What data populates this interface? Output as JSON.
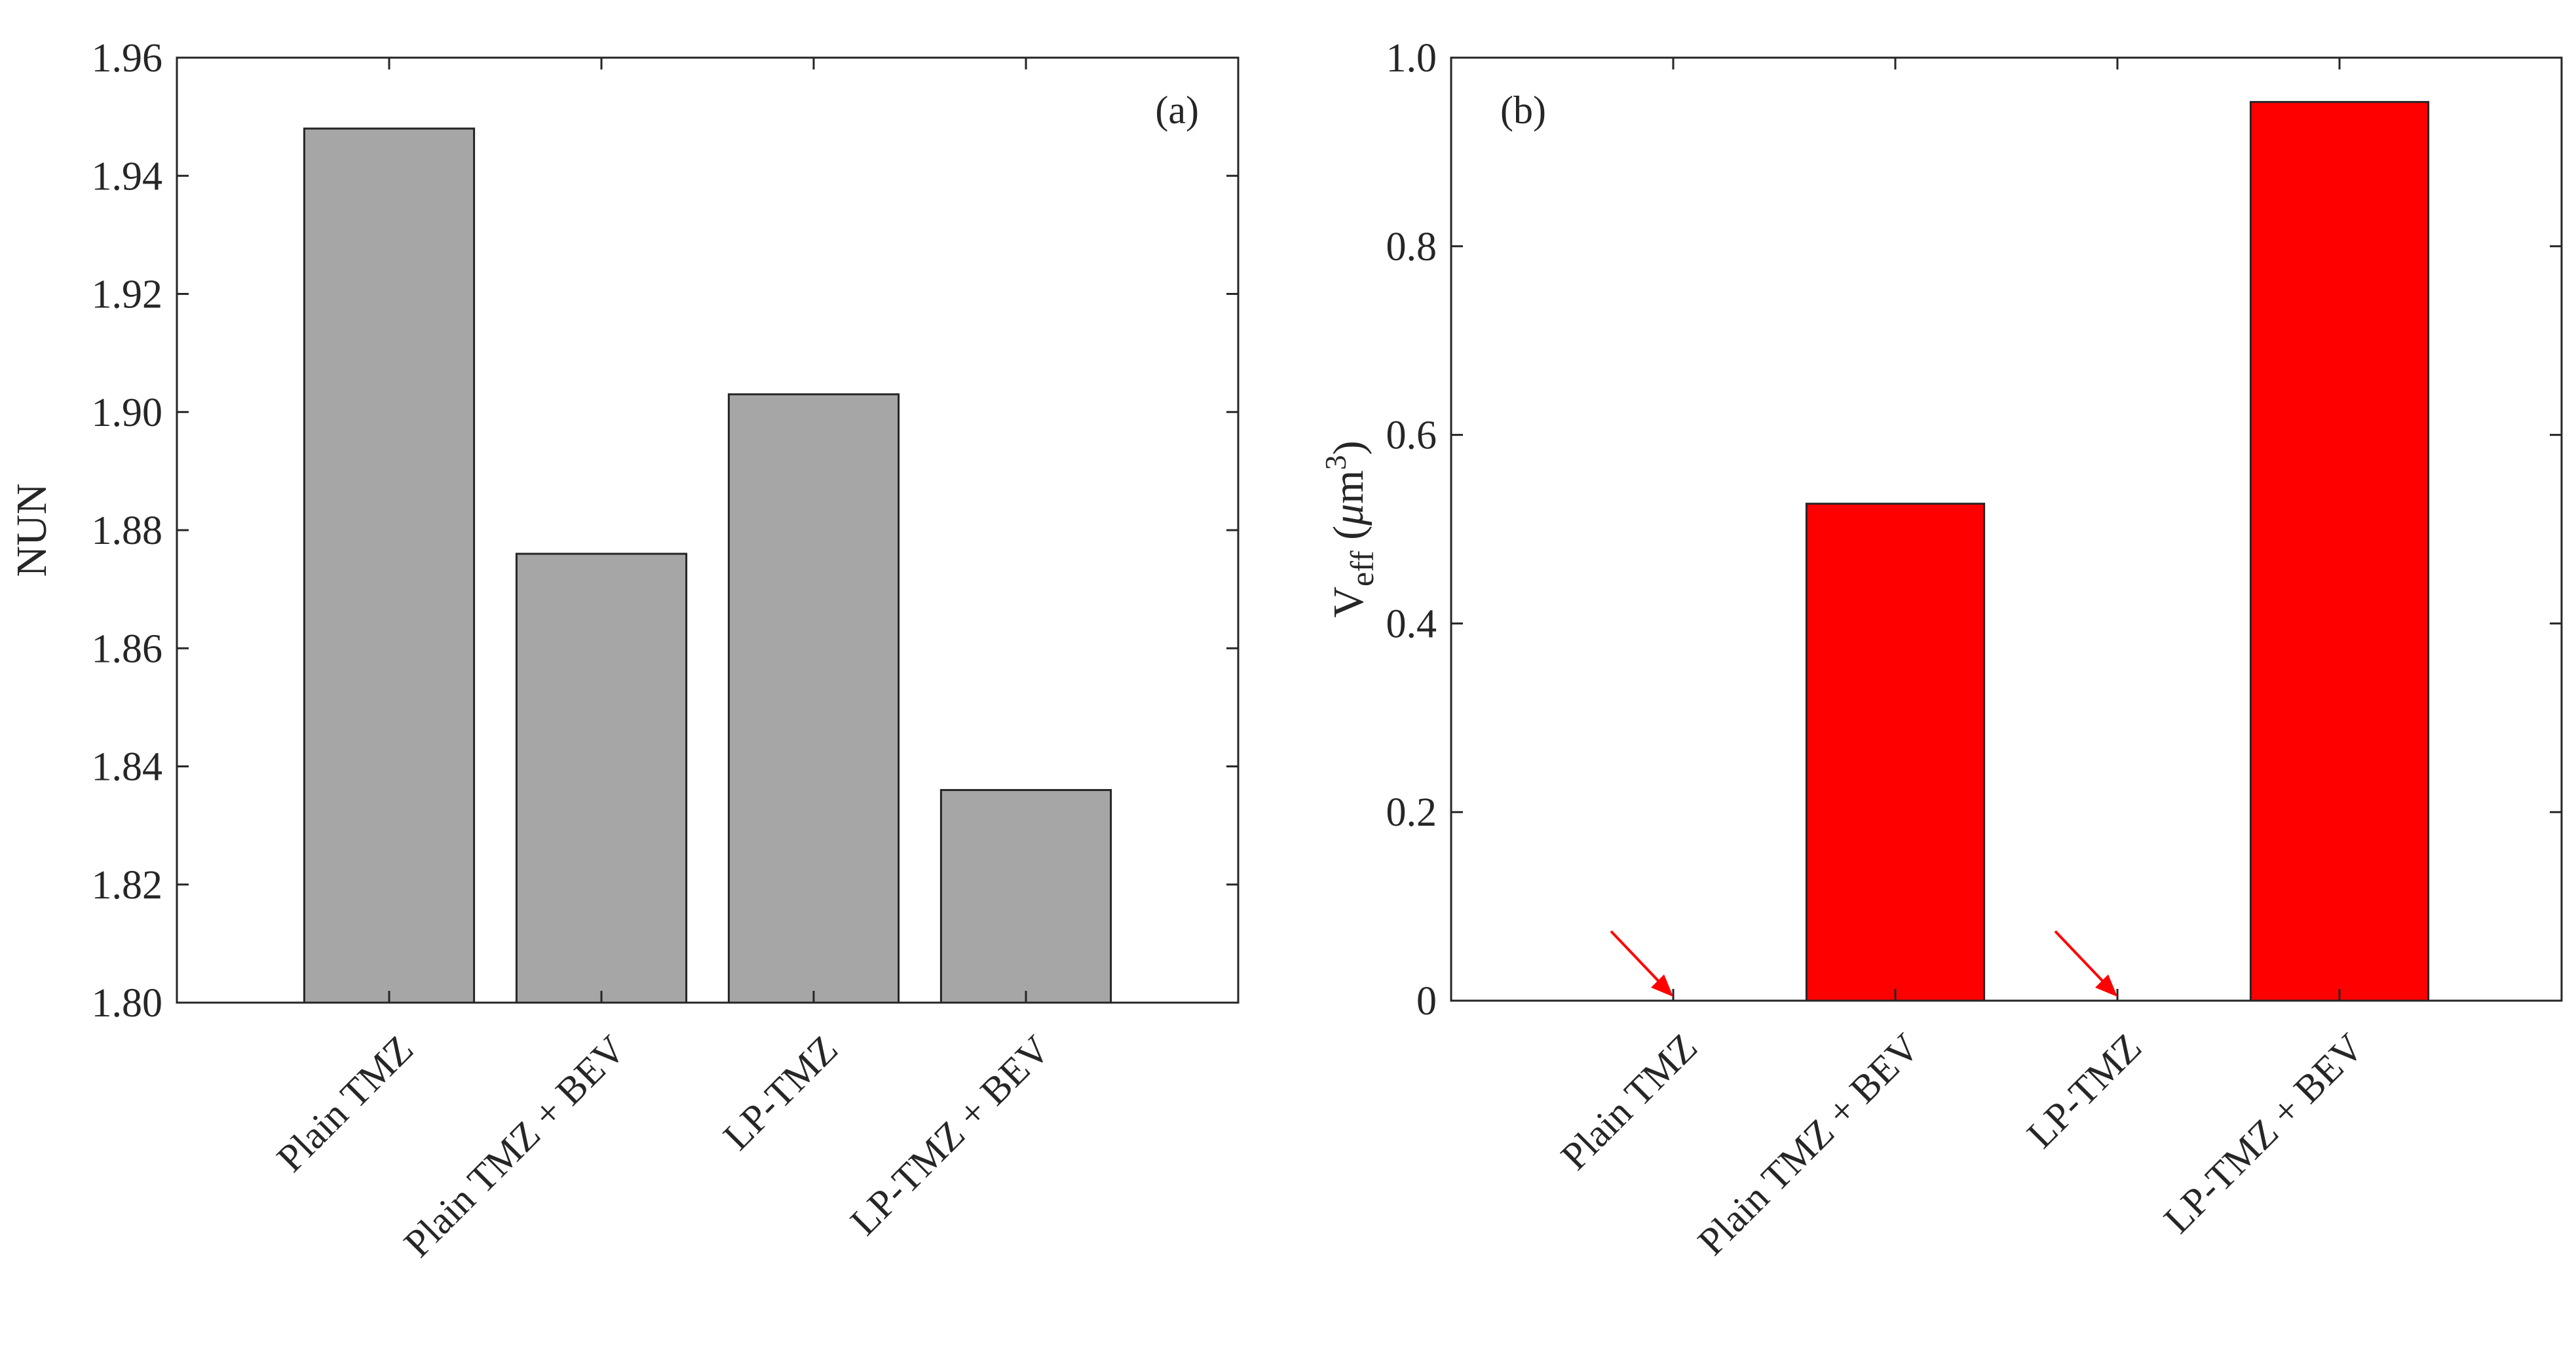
{
  "chart_data": [
    {
      "type": "bar",
      "panel_label": "(a)",
      "categories": [
        "Plain TMZ",
        "Plain TMZ + BEV",
        "LP-TMZ",
        "LP-TMZ + BEV"
      ],
      "values": [
        1.948,
        1.876,
        1.903,
        1.836
      ],
      "ylabel": "NUN",
      "xlabel": "",
      "ylim": [
        1.8,
        1.96
      ],
      "yticks": [
        1.8,
        1.82,
        1.84,
        1.86,
        1.88,
        1.9,
        1.92,
        1.94,
        1.96
      ],
      "ytick_labels": [
        "1.80",
        "1.82",
        "1.84",
        "1.86",
        "1.88",
        "1.90",
        "1.92",
        "1.94",
        "1.96"
      ],
      "bar_color": "#a6a6a6",
      "grid": false,
      "annotations": []
    },
    {
      "type": "bar",
      "panel_label": "(b)",
      "categories": [
        "Plain TMZ",
        "Plain TMZ + BEV",
        "LP-TMZ",
        "LP-TMZ + BEV"
      ],
      "values": [
        0,
        0.527,
        0,
        0.953
      ],
      "ylabel": "V",
      "ylabel_sub": "eff",
      "ylabel_unit_open": " (",
      "ylabel_unit_mu": "μ",
      "ylabel_unit_m": "m",
      "ylabel_unit_sup": "3",
      "ylabel_unit_close": ")",
      "xlabel": "",
      "ylim": [
        0,
        1.0
      ],
      "yticks": [
        0,
        0.2,
        0.4,
        0.6,
        0.8,
        1.0
      ],
      "ytick_labels": [
        "0",
        "0.2",
        "0.4",
        "0.6",
        "0.8",
        "1.0"
      ],
      "bar_color": "#ff0000",
      "arrow_color": "#ff0000",
      "grid": false,
      "annotations": [
        {
          "type": "arrow",
          "points_to_category": "Plain TMZ"
        },
        {
          "type": "arrow",
          "points_to_category": "LP-TMZ"
        }
      ]
    }
  ]
}
